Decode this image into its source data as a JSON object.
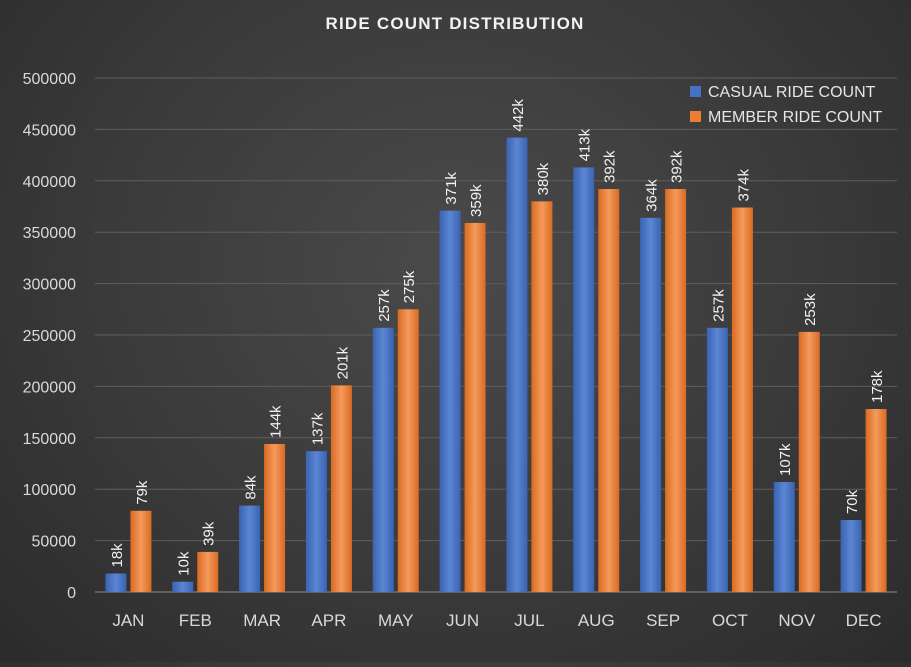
{
  "chart_data": {
    "type": "bar",
    "title": "RIDE COUNT DISTRIBUTION",
    "xlabel": "",
    "ylabel": "",
    "categories": [
      "JAN",
      "FEB",
      "MAR",
      "APR",
      "MAY",
      "JUN",
      "JUL",
      "AUG",
      "SEP",
      "OCT",
      "NOV",
      "DEC"
    ],
    "ylim": [
      0,
      500000
    ],
    "yticks": [
      0,
      50000,
      100000,
      150000,
      200000,
      250000,
      300000,
      350000,
      400000,
      450000,
      500000
    ],
    "grid": true,
    "legend_position": "top-right",
    "series": [
      {
        "name": "CASUAL RIDE COUNT",
        "color": "#4472c4",
        "values": [
          18000,
          10000,
          84000,
          137000,
          257000,
          371000,
          442000,
          413000,
          364000,
          257000,
          107000,
          70000
        ],
        "labels": [
          "18k",
          "10k",
          "84k",
          "137k",
          "257k",
          "371k",
          "442k",
          "413k",
          "364k",
          "257k",
          "107k",
          "70k"
        ]
      },
      {
        "name": "MEMBER RIDE COUNT",
        "color": "#ed7d31",
        "values": [
          79000,
          39000,
          144000,
          201000,
          275000,
          359000,
          380000,
          392000,
          392000,
          374000,
          253000,
          178000
        ],
        "labels": [
          "79k",
          "39k",
          "144k",
          "201k",
          "275k",
          "359k",
          "380k",
          "392k",
          "392k",
          "374k",
          "253k",
          "178k"
        ]
      }
    ]
  }
}
